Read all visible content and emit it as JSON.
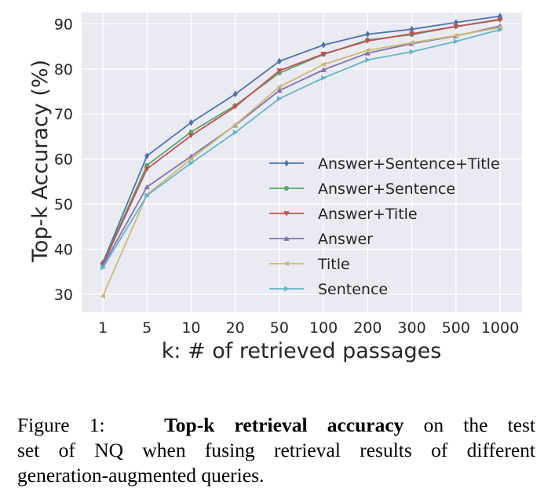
{
  "chart_data": {
    "type": "line",
    "title": "",
    "xlabel": "k: # of retrieved passages",
    "ylabel": "Top-k Accuracy (%)",
    "categories": [
      "1",
      "5",
      "10",
      "20",
      "50",
      "100",
      "200",
      "300",
      "500",
      "1000"
    ],
    "ylim": [
      26,
      92.5
    ],
    "yticks": [
      30,
      40,
      50,
      60,
      70,
      80,
      90
    ],
    "grid": true,
    "legend_position": "center-right",
    "series": [
      {
        "name": "Answer+Sentence+Title",
        "color": "#4c72b0",
        "marker": "diamond",
        "values": [
          37.0,
          60.7,
          68.1,
          74.4,
          81.7,
          85.3,
          87.7,
          88.8,
          90.3,
          91.7
        ]
      },
      {
        "name": "Answer+Sentence",
        "color": "#55a868",
        "marker": "circle",
        "values": [
          36.8,
          58.6,
          66.0,
          71.9,
          79.1,
          83.2,
          86.4,
          87.6,
          89.4,
          91.0
        ]
      },
      {
        "name": "Answer+Title",
        "color": "#c44e52",
        "marker": "triangle-down",
        "values": [
          36.6,
          57.8,
          65.2,
          71.6,
          79.6,
          83.3,
          86.2,
          87.8,
          89.4,
          90.9
        ]
      },
      {
        "name": "Answer",
        "color": "#8172b2",
        "marker": "triangle-up",
        "values": [
          36.3,
          53.8,
          60.6,
          67.5,
          75.2,
          79.8,
          83.5,
          85.6,
          87.3,
          89.5
        ]
      },
      {
        "name": "Title",
        "color": "#ccb974",
        "marker": "triangle-left",
        "values": [
          29.6,
          52.1,
          60.0,
          67.6,
          76.0,
          81.0,
          84.1,
          85.8,
          87.4,
          89.2
        ]
      },
      {
        "name": "Sentence",
        "color": "#64b5cd",
        "marker": "triangle-right",
        "values": [
          35.9,
          51.9,
          59.1,
          65.9,
          73.4,
          78.0,
          82.0,
          83.8,
          86.1,
          88.7
        ]
      }
    ]
  },
  "caption": {
    "label": "Figure 1:",
    "bold": "Top-k retrieval accuracy",
    "line1_rest": "on the test",
    "line2": "set of NQ when fusing retrieval results of different",
    "line3": "generation-augmented queries."
  }
}
